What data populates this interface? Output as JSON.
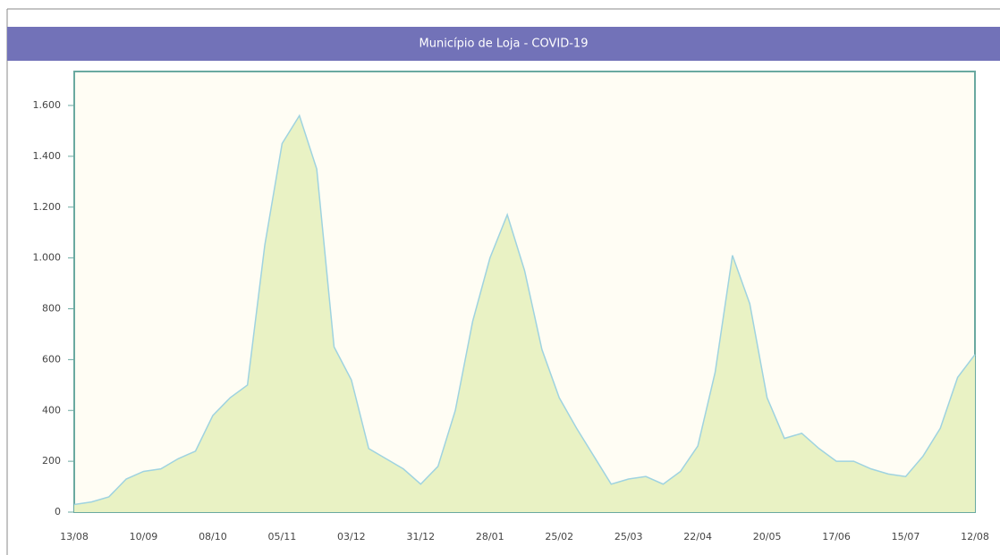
{
  "chart_data": {
    "type": "area",
    "title": "Município de Loja - COVID-19",
    "categories": [
      "13/08",
      null,
      null,
      null,
      "10/09",
      null,
      null,
      null,
      "08/10",
      null,
      null,
      null,
      "05/11",
      null,
      null,
      null,
      "03/12",
      null,
      null,
      null,
      "31/12",
      null,
      null,
      null,
      "28/01",
      null,
      null,
      null,
      "25/02",
      null,
      null,
      null,
      "25/03",
      null,
      null,
      null,
      "22/04",
      null,
      null,
      null,
      "20/05",
      null,
      null,
      null,
      "17/06",
      null,
      null,
      null,
      "15/07",
      null,
      null,
      null,
      "12/08"
    ],
    "values": [
      30,
      40,
      60,
      130,
      160,
      170,
      210,
      240,
      380,
      450,
      500,
      1050,
      1450,
      1560,
      1350,
      650,
      520,
      250,
      210,
      170,
      110,
      180,
      400,
      750,
      1000,
      1170,
      950,
      640,
      450,
      330,
      220,
      110,
      130,
      140,
      110,
      160,
      260,
      550,
      1010,
      820,
      450,
      290,
      310,
      250,
      200,
      200,
      170,
      150,
      140,
      220,
      330,
      530,
      620
    ],
    "color": "#9fd3e0",
    "fill": "#e9f2c4",
    "ylim": [
      0,
      1600
    ],
    "yticks": [
      0,
      200,
      400,
      600,
      800,
      {
        "value": 1000,
        "label": "1.000"
      },
      {
        "value": 1200,
        "label": "1.200"
      },
      {
        "value": 1400,
        "label": "1.400"
      },
      {
        "value": 1600,
        "label": "1.600"
      }
    ]
  }
}
